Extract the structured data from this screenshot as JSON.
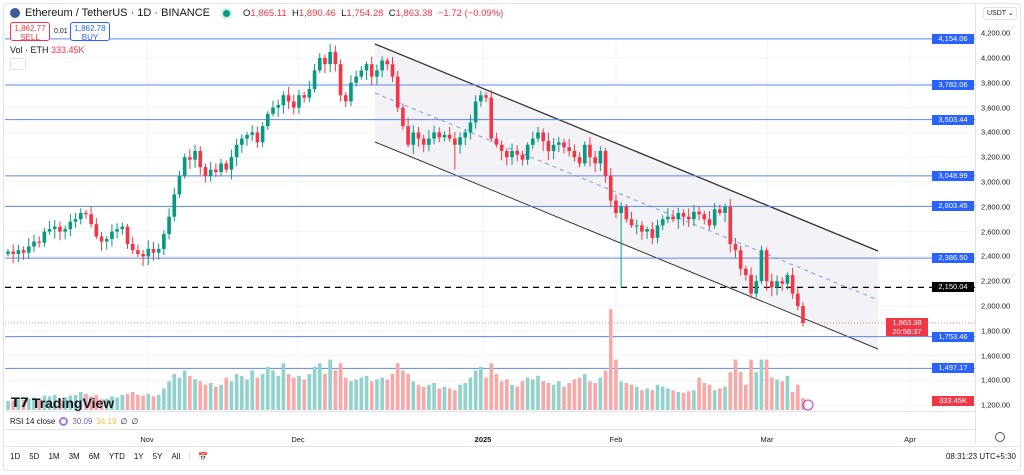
{
  "header": {
    "symbol": "Ethereum / TetherUS · 1D · BINANCE",
    "open_label": "O",
    "open": "1,865.11",
    "high_label": "H",
    "high": "1,890.46",
    "low_label": "L",
    "low": "1,754.28",
    "close_label": "C",
    "close": "1,863.38",
    "change": "−1.72 (−0.09%)"
  },
  "trade": {
    "sell_price": "1,862.77",
    "sell_label": "SELL",
    "spread": "0.01",
    "buy_price": "1,862.78",
    "buy_label": "BUY"
  },
  "volume_legend": {
    "label": "Vol · ETH",
    "value": "333.45K"
  },
  "price_axis": {
    "currency": "USDT",
    "ticks": [
      "4,200.00",
      "4,000.00",
      "3,800.00",
      "3,600.00",
      "3,400.00",
      "3,200.00",
      "3,000.00",
      "2,800.00",
      "2,600.00",
      "2,400.00",
      "2,200.00",
      "2,000.00",
      "1,800.00",
      "1,600.00",
      "1,400.00",
      "1,200.00"
    ],
    "tick_values": [
      4200,
      4000,
      3800,
      3600,
      3400,
      3200,
      3000,
      2800,
      2600,
      2400,
      2200,
      2000,
      1800,
      1600,
      1400,
      1200
    ]
  },
  "levels": [
    {
      "value": 4154.06,
      "label": "4,154.06"
    },
    {
      "value": 3782.06,
      "label": "3,782.06"
    },
    {
      "value": 3503.44,
      "label": "3,503.44"
    },
    {
      "value": 3048.99,
      "label": "3,048.99"
    },
    {
      "value": 2803.45,
      "label": "2,803.45"
    },
    {
      "value": 2386.5,
      "label": "2,386.50"
    },
    {
      "value": 1753.46,
      "label": "1,753.46"
    },
    {
      "value": 1497.17,
      "label": "1,497.17"
    }
  ],
  "dashed_level": {
    "value": 2150.04,
    "label": "2,150.04"
  },
  "last_price": {
    "value": 1863.38,
    "label": "1,863.38",
    "countdown": "20:58:37"
  },
  "volume_tag": "333.45K",
  "branding": "TradingView",
  "rsi": {
    "label": "RSI 14 close",
    "value1": "30.09",
    "value2": "34.19",
    "extra1": "∅",
    "extra2": "∅"
  },
  "time_axis": [
    "Nov",
    "Dec",
    "2025",
    "Feb",
    "Mar",
    "Apr"
  ],
  "ranges": [
    "1D",
    "5D",
    "1M",
    "3M",
    "6M",
    "YTD",
    "1Y",
    "5Y",
    "All"
  ],
  "clock": "08:31:23 UTC+5:30",
  "colors": {
    "up": "#089981",
    "down": "#f23645",
    "vol_up": "#92d2cc",
    "vol_down": "#f7a9a7",
    "level": "#2962ff"
  },
  "chart_data": {
    "type": "candlestick",
    "title": "Ethereum / TetherUS · 1D · BINANCE",
    "ylim": [
      1150,
      4300
    ],
    "first_open": 2420,
    "closes": [
      2440,
      2420,
      2450,
      2430,
      2480,
      2520,
      2510,
      2600,
      2620,
      2640,
      2600,
      2620,
      2680,
      2700,
      2750,
      2740,
      2660,
      2560,
      2520,
      2540,
      2600,
      2620,
      2640,
      2500,
      2450,
      2420,
      2400,
      2460,
      2430,
      2460,
      2580,
      2720,
      2900,
      3050,
      3200,
      3180,
      3250,
      3120,
      3050,
      3100,
      3080,
      3150,
      3100,
      3200,
      3300,
      3350,
      3380,
      3400,
      3320,
      3450,
      3550,
      3600,
      3620,
      3700,
      3650,
      3600,
      3700,
      3680,
      3750,
      3900,
      4000,
      3950,
      4050,
      3950,
      3700,
      3650,
      3800,
      3850,
      3900,
      3950,
      3850,
      3900,
      3980,
      3950,
      3850,
      3600,
      3450,
      3300,
      3400,
      3350,
      3300,
      3350,
      3400,
      3360,
      3380,
      3350,
      3300,
      3360,
      3400,
      3480,
      3650,
      3700,
      3680,
      3350,
      3300,
      3250,
      3200,
      3250,
      3220,
      3180,
      3300,
      3350,
      3400,
      3330,
      3250,
      3300,
      3320,
      3280,
      3250,
      3200,
      3150,
      3300,
      3200,
      3150,
      3250,
      3050,
      2850,
      2750,
      2800,
      2700,
      2650,
      2650,
      2600,
      2620,
      2550,
      2650,
      2700,
      2720,
      2700,
      2750,
      2720,
      2700,
      2760,
      2740,
      2700,
      2650,
      2780,
      2750,
      2800,
      2500,
      2450,
      2300,
      2250,
      2100,
      2200,
      2450,
      2200,
      2150,
      2200,
      2180,
      2250,
      2100,
      2000,
      1863
    ],
    "low_override": {
      "index": 86,
      "low": 3100,
      "index2": 118,
      "low2": 2150
    },
    "volumes_k": [
      250,
      260,
      300,
      280,
      320,
      350,
      300,
      400,
      380,
      420,
      300,
      350,
      400,
      420,
      500,
      450,
      380,
      420,
      300,
      320,
      380,
      350,
      420,
      450,
      500,
      420,
      400,
      450,
      380,
      420,
      600,
      800,
      1000,
      900,
      1100,
      950,
      850,
      800,
      700,
      750,
      650,
      700,
      900,
      800,
      1000,
      950,
      850,
      1100,
      900,
      1000,
      1200,
      1100,
      950,
      1300,
      1000,
      900,
      950,
      850,
      1000,
      1200,
      1300,
      1000,
      1400,
      1100,
      1300,
      900,
      800,
      850,
      900,
      950,
      800,
      850,
      900,
      850,
      1000,
      1300,
      1100,
      1000,
      800,
      700,
      650,
      700,
      750,
      600,
      650,
      600,
      550,
      700,
      750,
      900,
      1100,
      1200,
      900,
      1300,
      1000,
      800,
      850,
      700,
      650,
      800,
      900,
      850,
      950,
      800,
      750,
      700,
      800,
      650,
      750,
      850,
      900,
      1000,
      800,
      750,
      900,
      1100,
      2800,
      1400,
      800,
      750,
      700,
      650,
      550,
      600,
      550,
      700,
      650,
      600,
      550,
      500,
      480,
      520,
      550,
      900,
      750,
      700,
      550,
      600,
      650,
      1050,
      1400,
      1050,
      700,
      1400,
      1050,
      1400,
      1400,
      900,
      850,
      800,
      950,
      500,
      700,
      333.45
    ]
  }
}
